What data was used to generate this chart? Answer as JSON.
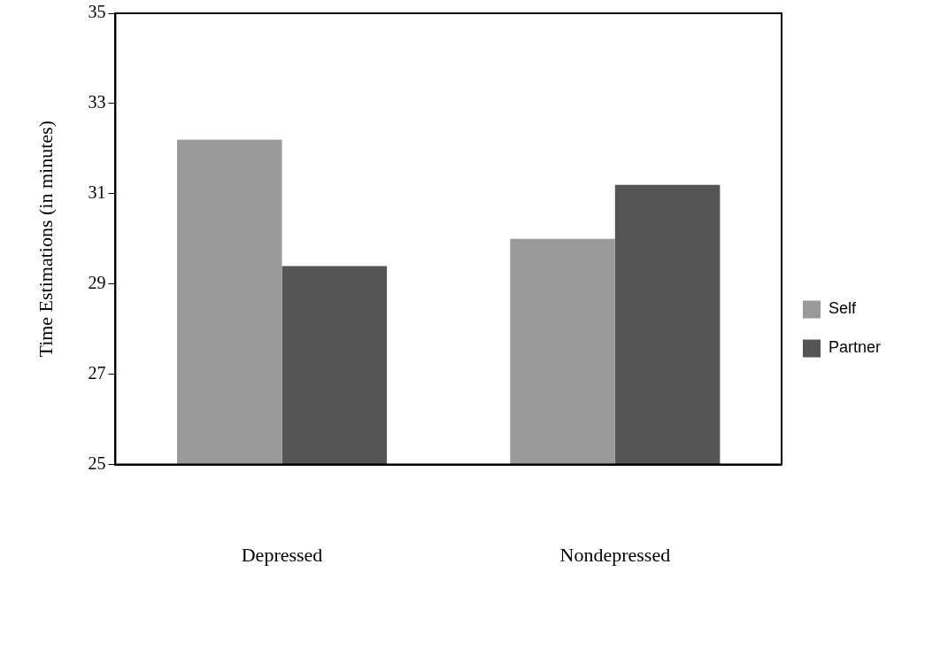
{
  "chart_data": {
    "type": "bar",
    "ylabel": "Time Estimations (in minutes)",
    "categories": [
      "Depressed",
      "Nondepressed"
    ],
    "series": [
      {
        "name": "Self",
        "color": "#9a9a9a",
        "values": [
          32.2,
          30.0
        ]
      },
      {
        "name": "Partner",
        "color": "#555555",
        "values": [
          29.4,
          31.2
        ]
      }
    ],
    "ylim": [
      25,
      35
    ],
    "yticks": [
      25,
      27,
      29,
      31,
      33,
      35
    ],
    "grid": false,
    "legend": "right"
  }
}
